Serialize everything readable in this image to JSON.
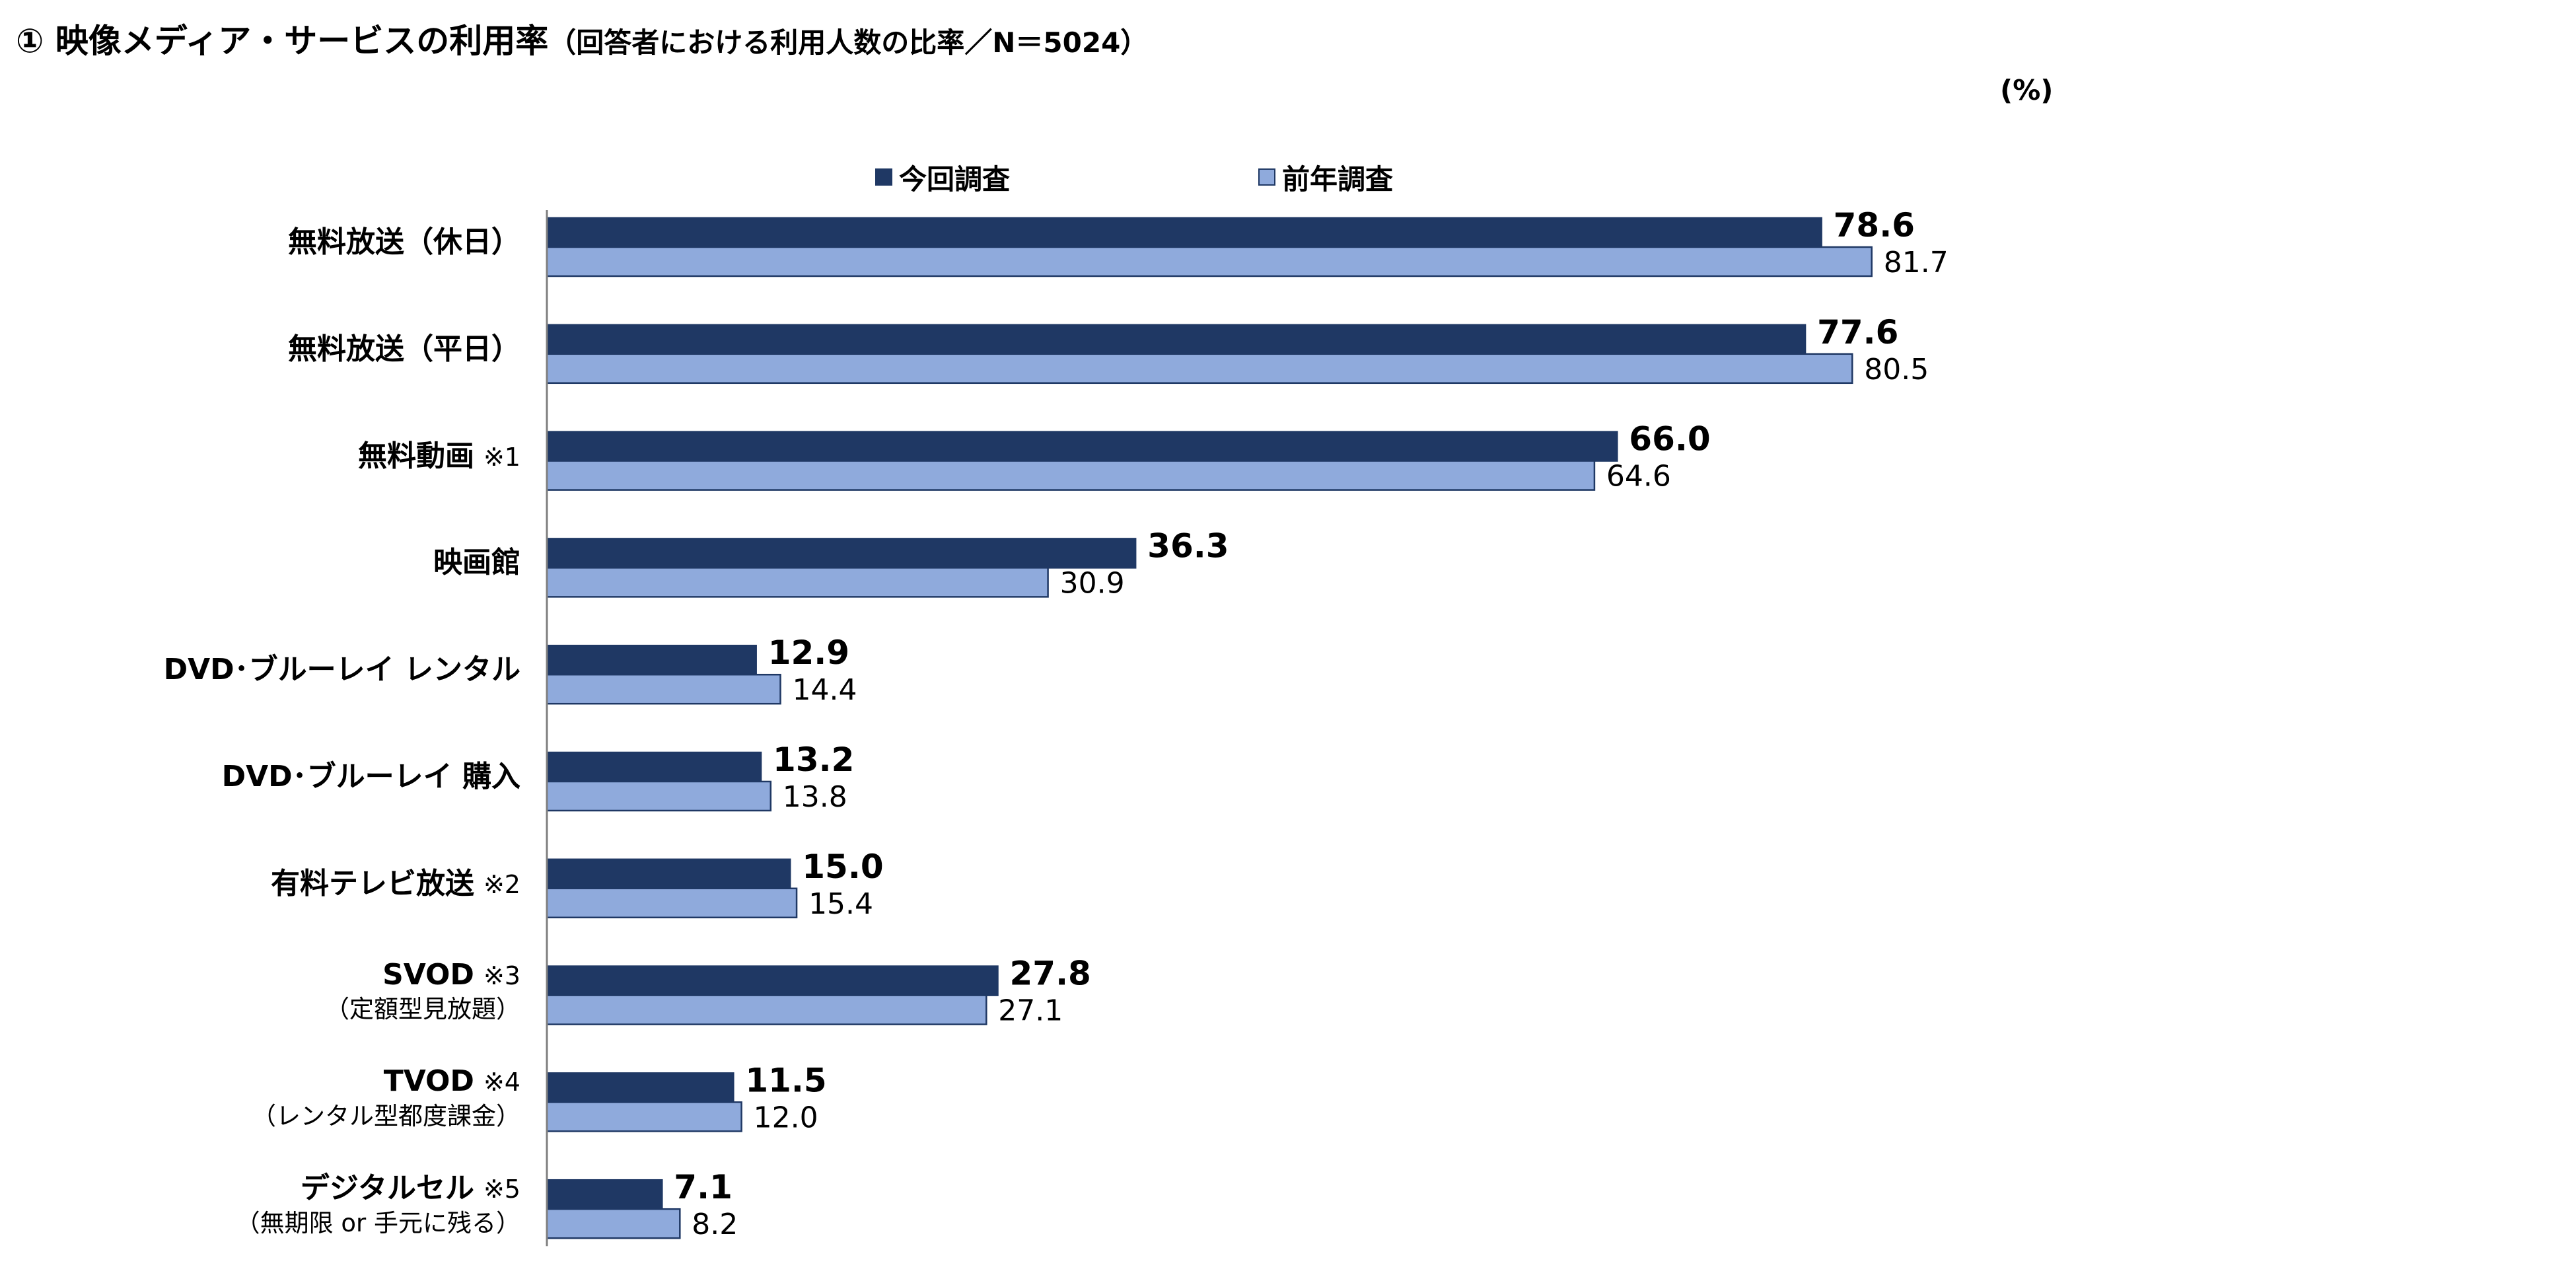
{
  "title": {
    "main": "① 映像メディア・サービスの利用率",
    "sub": "（回答者における利用人数の比率／N＝5024）"
  },
  "unit_label": "(%)",
  "legend": {
    "current": "今回調査",
    "previous": "前年調査"
  },
  "colors": {
    "current": "#1f3864",
    "previous": "#8faadc",
    "bar_border": "#1f3864",
    "axis": "#7f7f7f"
  },
  "categories": [
    {
      "label": "無料放送（休日）",
      "note": "",
      "sub": ""
    },
    {
      "label": "無料放送（平日）",
      "note": "",
      "sub": ""
    },
    {
      "label": "無料動画",
      "note": "※1",
      "sub": ""
    },
    {
      "label": "映画館",
      "note": "",
      "sub": ""
    },
    {
      "label": "DVD･ブルーレイ レンタル",
      "note": "",
      "sub": ""
    },
    {
      "label": "DVD･ブルーレイ 購入",
      "note": "",
      "sub": ""
    },
    {
      "label": "有料テレビ放送",
      "note": "※2",
      "sub": ""
    },
    {
      "label": "SVOD",
      "note": "※3",
      "sub": "（定額型見放題）"
    },
    {
      "label": "TVOD",
      "note": "※4",
      "sub": "（レンタル型都度課金）"
    },
    {
      "label": "デジタルセル",
      "note": "※5",
      "sub": "（無期限 or 手元に残る）"
    }
  ],
  "chart_data": {
    "type": "bar",
    "orientation": "horizontal",
    "title": "① 映像メディア・サービスの利用率",
    "subtitle": "（回答者における利用人数の比率／N＝5024）",
    "unit": "(%)",
    "categories": [
      "無料放送（休日）",
      "無料放送（平日）",
      "無料動画",
      "映画館",
      "DVD･ブルーレイ レンタル",
      "DVD･ブルーレイ 購入",
      "有料テレビ放送",
      "SVOD",
      "TVOD",
      "デジタルセル"
    ],
    "series": [
      {
        "name": "今回調査",
        "values": [
          78.6,
          77.6,
          66.0,
          36.3,
          12.9,
          13.2,
          15.0,
          27.8,
          11.5,
          7.1
        ],
        "labels": [
          "78.6",
          "77.6",
          "66.0",
          "36.3",
          "12.9",
          "13.2",
          "15.0",
          "27.8",
          "11.5",
          "7.1"
        ]
      },
      {
        "name": "前年調査",
        "values": [
          81.7,
          80.5,
          64.6,
          30.9,
          14.4,
          13.8,
          15.4,
          27.1,
          12.0,
          8.2
        ],
        "labels": [
          "81.7",
          "80.5",
          "64.6",
          "30.9",
          "14.4",
          "13.8",
          "15.4",
          "27.1",
          "12.0",
          "8.2"
        ]
      }
    ],
    "xlim": [
      0,
      100
    ],
    "grid": false,
    "legend_position": "top"
  }
}
